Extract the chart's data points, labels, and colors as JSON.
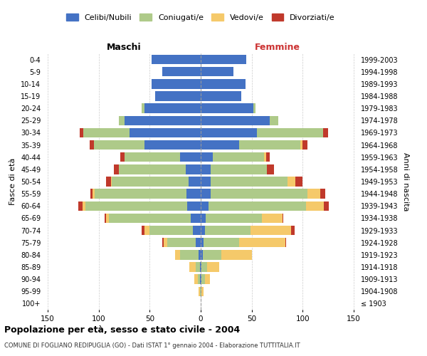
{
  "age_groups": [
    "100+",
    "95-99",
    "90-94",
    "85-89",
    "80-84",
    "75-79",
    "70-74",
    "65-69",
    "60-64",
    "55-59",
    "50-54",
    "45-49",
    "40-44",
    "35-39",
    "30-34",
    "25-29",
    "20-24",
    "15-19",
    "10-14",
    "5-9",
    "0-4"
  ],
  "birth_years": [
    "≤ 1903",
    "1904-1908",
    "1909-1913",
    "1914-1918",
    "1919-1923",
    "1924-1928",
    "1929-1933",
    "1934-1938",
    "1939-1943",
    "1944-1948",
    "1949-1953",
    "1954-1958",
    "1959-1963",
    "1964-1968",
    "1969-1973",
    "1974-1978",
    "1979-1983",
    "1984-1988",
    "1989-1993",
    "1994-1998",
    "1999-2003"
  ],
  "colors": {
    "celibe": "#4472C4",
    "coniugato": "#AECA89",
    "vedovo": "#F5C96A",
    "divorziato": "#C0392B"
  },
  "maschi": {
    "celibe": [
      0,
      0,
      1,
      1,
      2,
      5,
      8,
      10,
      13,
      14,
      12,
      15,
      20,
      55,
      70,
      75,
      55,
      45,
      48,
      38,
      48
    ],
    "coniugato": [
      0,
      1,
      2,
      4,
      18,
      28,
      42,
      80,
      100,
      90,
      75,
      65,
      55,
      50,
      45,
      5,
      3,
      0,
      0,
      0,
      0
    ],
    "vedovo": [
      0,
      1,
      3,
      6,
      5,
      3,
      5,
      3,
      3,
      2,
      1,
      0,
      0,
      0,
      0,
      0,
      0,
      0,
      0,
      0,
      0
    ],
    "divorziato": [
      0,
      0,
      0,
      0,
      0,
      2,
      3,
      1,
      4,
      2,
      5,
      5,
      4,
      4,
      4,
      0,
      0,
      0,
      0,
      0,
      0
    ]
  },
  "femmine": {
    "nubile": [
      0,
      0,
      1,
      1,
      2,
      3,
      4,
      5,
      8,
      10,
      10,
      10,
      12,
      38,
      55,
      68,
      52,
      40,
      44,
      32,
      45
    ],
    "coniugata": [
      0,
      1,
      3,
      5,
      18,
      35,
      45,
      55,
      95,
      95,
      75,
      55,
      50,
      60,
      65,
      8,
      2,
      0,
      0,
      0,
      0
    ],
    "vedova": [
      0,
      2,
      5,
      12,
      30,
      45,
      40,
      20,
      18,
      12,
      8,
      0,
      2,
      2,
      0,
      0,
      0,
      0,
      0,
      0,
      0
    ],
    "divorziata": [
      0,
      0,
      0,
      0,
      0,
      1,
      3,
      1,
      5,
      5,
      7,
      7,
      4,
      5,
      5,
      0,
      0,
      0,
      0,
      0,
      0
    ]
  },
  "xlim": 155,
  "title": "Popolazione per età, sesso e stato civile - 2004",
  "subtitle": "COMUNE DI FOGLIANO REDIPUGLIA (GO) - Dati ISTAT 1° gennaio 2004 - Elaborazione TUTTITALIA.IT",
  "ylabel": "Fasce di età",
  "ylabel_right": "Anni di nascita",
  "xlabel_maschi": "Maschi",
  "xlabel_femmine": "Femmine",
  "legend_labels": [
    "Celibi/Nubili",
    "Coniugati/e",
    "Vedovi/e",
    "Divorziati/e"
  ],
  "background_color": "#FFFFFF",
  "grid_color": "#CCCCCC"
}
